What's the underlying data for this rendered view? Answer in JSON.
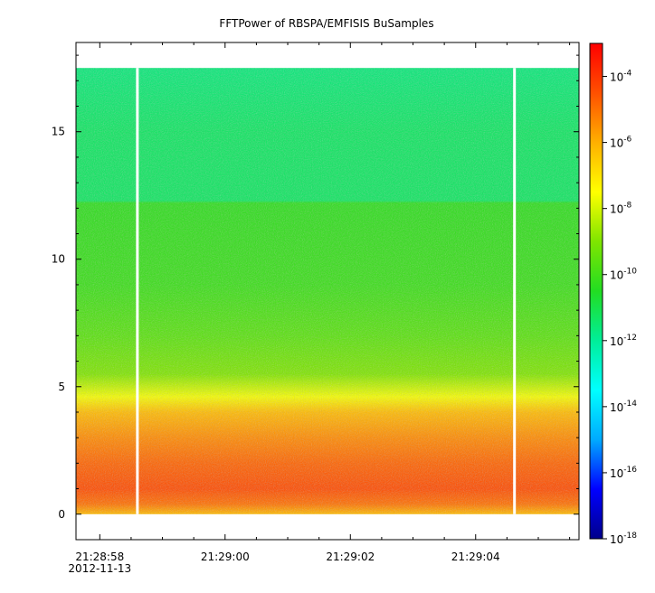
{
  "chart_data": {
    "type": "heatmap",
    "title": "FFTPower of RBSPA/EMFISIS  BuSamples",
    "xlabel": "",
    "ylabel": "",
    "x_ticks": [
      {
        "label": "21:28:58",
        "sublabel": "2012-11-13",
        "t": 0
      },
      {
        "label": "21:29:00",
        "sublabel": "",
        "t": 2
      },
      {
        "label": "21:29:02",
        "sublabel": "",
        "t": 4
      },
      {
        "label": "21:29:04",
        "sublabel": "",
        "t": 6
      }
    ],
    "x_range_seconds": [
      -0.38,
      7.65
    ],
    "ylim": [
      -1,
      18.5
    ],
    "y_ticks": [
      0,
      5,
      10,
      15
    ],
    "data_extent": {
      "t_start": -0.38,
      "t_end": 7.65,
      "f_min": 0,
      "f_max": 17.5
    },
    "gaps_t": [
      0.6,
      6.62
    ],
    "colorbar": {
      "scale": "log",
      "range": [
        1e-18,
        0.001
      ],
      "ticks": [
        {
          "base": "10",
          "exp": "-4",
          "value": -4
        },
        {
          "base": "10",
          "exp": "-6",
          "value": -6
        },
        {
          "base": "10",
          "exp": "-8",
          "value": -8
        },
        {
          "base": "10",
          "exp": "-10",
          "value": -10
        },
        {
          "base": "10",
          "exp": "-12",
          "value": -12
        },
        {
          "base": "10",
          "exp": "-14",
          "value": -14
        },
        {
          "base": "10",
          "exp": "-16",
          "value": -16
        },
        {
          "base": "10",
          "exp": "-18",
          "value": -18
        }
      ],
      "colors": [
        "#00008b",
        "#0000ff",
        "#00aaff",
        "#00ffff",
        "#00ee99",
        "#22dd22",
        "#7fe500",
        "#ffff00",
        "#ffb000",
        "#ff5000",
        "#ff0000"
      ]
    },
    "spectrum_log10": [
      {
        "f": 0.0,
        "v": -6.2
      },
      {
        "f": 0.4,
        "v": -5.0
      },
      {
        "f": 1.0,
        "v": -4.4
      },
      {
        "f": 2.0,
        "v": -4.8
      },
      {
        "f": 3.0,
        "v": -5.4
      },
      {
        "f": 4.0,
        "v": -6.2
      },
      {
        "f": 4.6,
        "v": -7.6
      },
      {
        "f": 5.5,
        "v": -9.0
      },
      {
        "f": 7.0,
        "v": -9.6
      },
      {
        "f": 9.0,
        "v": -10.1
      },
      {
        "f": 12.2,
        "v": -10.3
      },
      {
        "f": 12.3,
        "v": -11.3
      },
      {
        "f": 15.0,
        "v": -11.3
      },
      {
        "f": 17.5,
        "v": -11.6
      }
    ]
  }
}
